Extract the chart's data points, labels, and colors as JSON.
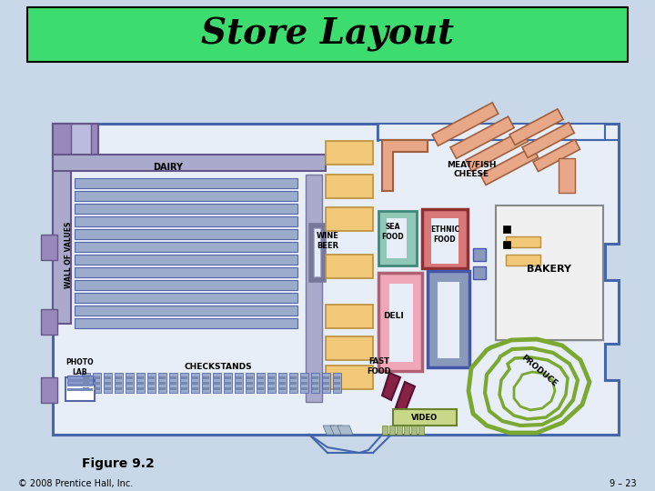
{
  "title": "Store Layout",
  "title_bg": "#3ddc6e",
  "title_fontsize": 28,
  "bg_color": "#c8d8e8",
  "figure_caption": "Figure 9.2",
  "copyright": "© 2008 Prentice Hall, Inc.",
  "page_ref": "9 – 23",
  "wall_color": "#4466aa",
  "wall_lw": 2.0,
  "floor_color": "#e8eef8",
  "shelf_blue": "#9aabcc",
  "shelf_blue_edge": "#5566aa",
  "tan_color": "#f0c878",
  "tan_edge": "#b89040",
  "meat_color": "#e8a888",
  "meat_edge": "#a06040",
  "sea_color": "#90c8b8",
  "sea_edge": "#408878",
  "ethnic_color": "#d87878",
  "ethnic_edge": "#903030",
  "deli_color": "#f0a8b8",
  "deli_edge": "#b06070",
  "blue_fixture": "#8899bb",
  "blue_fix_edge": "#4455aa",
  "produce_color": "#7aa830",
  "produce_edge": "#4a7018",
  "fastfood_color": "#882244",
  "fastfood_edge": "#551133",
  "video_color": "#c8d888",
  "video_edge": "#6a8030",
  "bakery_bg": "#f0f0f0",
  "bakery_edge": "#888888",
  "purple_color": "#9988bb",
  "purple_edge": "#665588",
  "gray_color": "#aaaacc",
  "gray_edge": "#777799"
}
